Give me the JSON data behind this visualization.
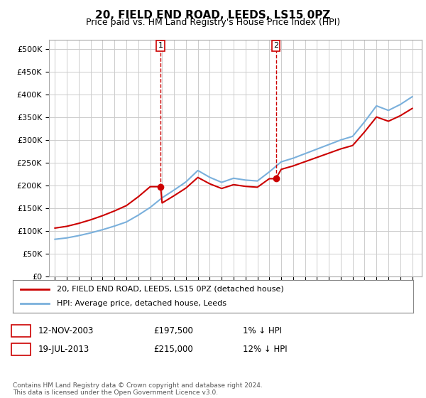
{
  "title": "20, FIELD END ROAD, LEEDS, LS15 0PZ",
  "subtitle": "Price paid vs. HM Land Registry's House Price Index (HPI)",
  "ylabel_ticks": [
    0,
    50000,
    100000,
    150000,
    200000,
    250000,
    300000,
    350000,
    400000,
    450000,
    500000
  ],
  "ylabel_labels": [
    "£0",
    "£50K",
    "£100K",
    "£150K",
    "£200K",
    "£250K",
    "£300K",
    "£350K",
    "£400K",
    "£450K",
    "£500K"
  ],
  "ylim": [
    0,
    520000
  ],
  "hpi_color": "#7ab0dc",
  "property_color": "#cc0000",
  "sale1_date": 2003.87,
  "sale1_price": 197500,
  "sale1_label": "1",
  "sale2_date": 2013.55,
  "sale2_price": 215000,
  "sale2_label": "2",
  "legend_property": "20, FIELD END ROAD, LEEDS, LS15 0PZ (detached house)",
  "legend_hpi": "HPI: Average price, detached house, Leeds",
  "footnote": "Contains HM Land Registry data © Crown copyright and database right 2024.\nThis data is licensed under the Open Government Licence v3.0.",
  "background_color": "#ffffff",
  "grid_color": "#cccccc",
  "title_fontsize": 11,
  "subtitle_fontsize": 9
}
